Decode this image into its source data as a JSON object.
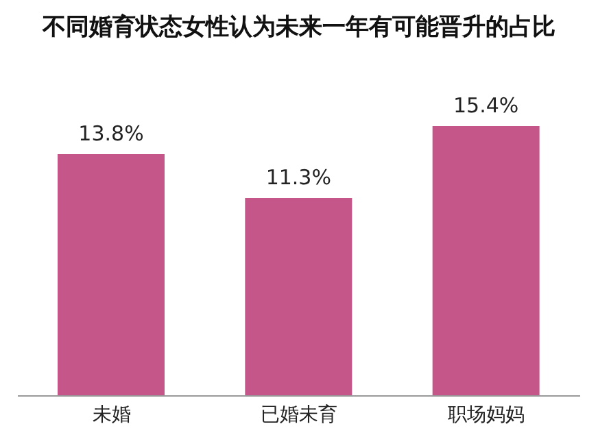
{
  "chart_data": {
    "type": "bar",
    "title": "不同婚育状态女性认为未来一年有可能晋升的占比",
    "categories": [
      "未婚",
      "已婚未育",
      "职场妈妈"
    ],
    "values": [
      13.8,
      11.3,
      15.4
    ],
    "value_labels": [
      "13.8%",
      "11.3%",
      "15.4%"
    ],
    "color": "#c5568a",
    "grid": false,
    "legend": false
  }
}
